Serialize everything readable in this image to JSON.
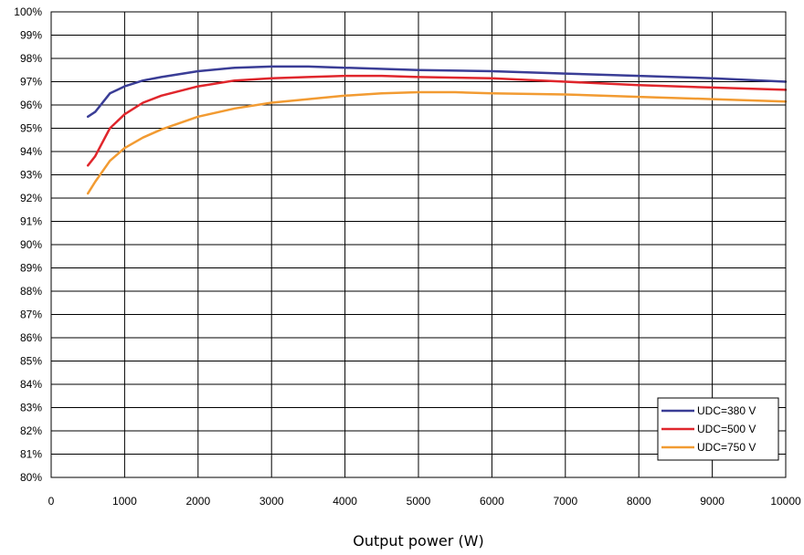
{
  "chart_data": {
    "type": "line",
    "title": "",
    "xlabel": "Output power (W)",
    "ylabel": "",
    "xlim": [
      0,
      10000
    ],
    "ylim": [
      80,
      100
    ],
    "x_ticks": [
      0,
      1000,
      2000,
      3000,
      4000,
      5000,
      6000,
      7000,
      8000,
      9000,
      10000
    ],
    "y_ticks": [
      80,
      81,
      82,
      83,
      84,
      85,
      86,
      87,
      88,
      89,
      90,
      91,
      92,
      93,
      94,
      95,
      96,
      97,
      98,
      99,
      100
    ],
    "y_tick_suffix": "%",
    "grid": true,
    "legend_position": "bottom-right",
    "series": [
      {
        "name": "UDC=380 V",
        "color": "#3a3d96",
        "x": [
          500,
          600,
          800,
          1000,
          1250,
          1500,
          2000,
          2500,
          3000,
          3500,
          4000,
          5000,
          6000,
          7000,
          8000,
          9000,
          10000
        ],
        "y": [
          95.5,
          95.7,
          96.5,
          96.8,
          97.05,
          97.2,
          97.45,
          97.6,
          97.65,
          97.65,
          97.6,
          97.5,
          97.45,
          97.35,
          97.25,
          97.15,
          97.0
        ]
      },
      {
        "name": "UDC=500 V",
        "color": "#e0262c",
        "x": [
          500,
          600,
          800,
          1000,
          1250,
          1500,
          2000,
          2500,
          3000,
          3500,
          4000,
          4500,
          5000,
          6000,
          7000,
          8000,
          9000,
          10000
        ],
        "y": [
          93.4,
          93.8,
          95.0,
          95.6,
          96.1,
          96.4,
          96.8,
          97.05,
          97.15,
          97.2,
          97.25,
          97.25,
          97.2,
          97.15,
          97.0,
          96.85,
          96.75,
          96.65
        ]
      },
      {
        "name": "UDC=750 V",
        "color": "#f29b32",
        "x": [
          500,
          600,
          800,
          1000,
          1250,
          1500,
          2000,
          2500,
          3000,
          3500,
          4000,
          4500,
          5000,
          5500,
          6000,
          7000,
          8000,
          9000,
          10000
        ],
        "y": [
          92.2,
          92.7,
          93.6,
          94.15,
          94.6,
          94.95,
          95.5,
          95.85,
          96.1,
          96.25,
          96.4,
          96.5,
          96.55,
          96.55,
          96.5,
          96.45,
          96.35,
          96.25,
          96.15
        ]
      }
    ]
  }
}
